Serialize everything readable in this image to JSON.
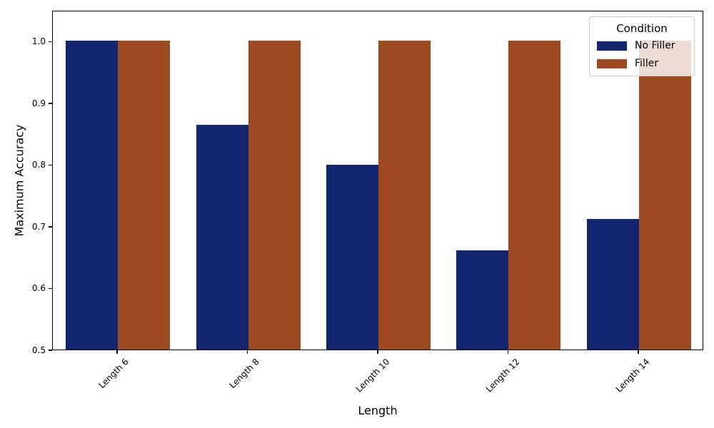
{
  "figure": {
    "background": "#ffffff",
    "axis_color": "#000000"
  },
  "chart_data": {
    "type": "bar",
    "title": "",
    "xlabel": "Length",
    "ylabel": "Maximum Accuracy",
    "categories": [
      "Length 6",
      "Length 8",
      "Length 10",
      "Length 12",
      "Length 14"
    ],
    "series": [
      {
        "name": "No Filler",
        "color": "#14246e",
        "values": [
          1.0,
          0.864,
          0.799,
          0.661,
          0.711
        ]
      },
      {
        "name": "Filler",
        "color": "#9e4a20",
        "values": [
          1.0,
          1.0,
          1.0,
          1.0,
          1.0
        ]
      }
    ],
    "ylim": [
      0.5,
      1.05
    ],
    "yticks": [
      0.5,
      0.6,
      0.7,
      0.8,
      0.9,
      1.0
    ],
    "grid": false,
    "legend": {
      "title": "Condition",
      "position": "upper right"
    }
  }
}
